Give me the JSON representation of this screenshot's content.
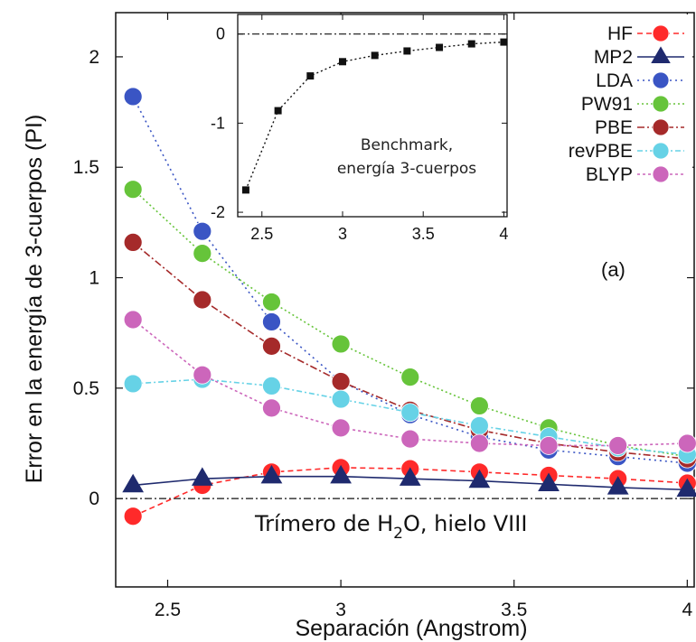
{
  "chart_data": [
    {
      "type": "line",
      "title": "",
      "xlabel": "Separación (Angstrom)",
      "ylabel": "Error en la energía de 3-cuerpos (PI)",
      "xlim": [
        2.35,
        4.02
      ],
      "ylim": [
        -0.4,
        2.2
      ],
      "x": [
        2.4,
        2.6,
        2.8,
        3.0,
        3.2,
        3.4,
        3.6,
        3.8,
        4.0
      ],
      "xticks": [
        "2.5",
        "3",
        "3.5",
        "4"
      ],
      "xtick_values": [
        2.5,
        3.0,
        3.5,
        4.0
      ],
      "yticks": [
        "0",
        "0.5",
        "1",
        "1.5",
        "2"
      ],
      "ytick_values": [
        0,
        0.5,
        1,
        1.5,
        2
      ],
      "annotation_panel": "(a)",
      "annotation_bottom_parts": [
        "Trímero de H",
        "2",
        "O, hielo VIII"
      ],
      "legend_position": "top-right",
      "grid": false,
      "series": [
        {
          "name": "HF",
          "color": "#ff2a2a",
          "marker": "circle",
          "dash": "6,4",
          "values": [
            -0.08,
            0.06,
            0.12,
            0.14,
            0.135,
            0.12,
            0.105,
            0.09,
            0.07
          ]
        },
        {
          "name": "MP2",
          "color": "#1f2a6e",
          "marker": "triangle",
          "dash": "",
          "values": [
            0.06,
            0.09,
            0.1,
            0.1,
            0.09,
            0.08,
            0.065,
            0.05,
            0.04
          ]
        },
        {
          "name": "LDA",
          "color": "#3a55c4",
          "marker": "circle",
          "dash": "2,4",
          "values": [
            1.82,
            1.21,
            0.8,
            0.53,
            0.38,
            0.28,
            0.22,
            0.19,
            0.16
          ]
        },
        {
          "name": "PW91",
          "color": "#66c43a",
          "marker": "circle",
          "dash": "2,3",
          "values": [
            1.4,
            1.11,
            0.89,
            0.7,
            0.55,
            0.42,
            0.32,
            0.24,
            0.19
          ]
        },
        {
          "name": "PBE",
          "color": "#a52a2a",
          "marker": "circle",
          "dash": "8,3,2,3",
          "values": [
            1.16,
            0.9,
            0.69,
            0.53,
            0.4,
            0.31,
            0.25,
            0.21,
            0.18
          ]
        },
        {
          "name": "revPBE",
          "color": "#66d2e6",
          "marker": "circle",
          "dash": "6,3,2,3",
          "values": [
            0.52,
            0.54,
            0.51,
            0.45,
            0.39,
            0.33,
            0.28,
            0.23,
            0.2
          ]
        },
        {
          "name": "BLYP",
          "color": "#cc66bb",
          "marker": "circle",
          "dash": "3,3",
          "values": [
            0.81,
            0.56,
            0.41,
            0.32,
            0.27,
            0.25,
            0.24,
            0.24,
            0.25
          ]
        }
      ]
    },
    {
      "type": "line",
      "title": "",
      "xlabel": "",
      "ylabel": "",
      "xlim": [
        2.35,
        4.02
      ],
      "ylim": [
        -2.05,
        0.22
      ],
      "xticks": [
        "2.5",
        "3",
        "3.5",
        "4"
      ],
      "xtick_values": [
        2.5,
        3.0,
        3.5,
        4.0
      ],
      "yticks": [
        "0",
        "-1",
        "-2"
      ],
      "ytick_values": [
        0,
        -1,
        -2
      ],
      "annotation": [
        "Benchmark,",
        "energía 3-cuerpos"
      ],
      "grid": false,
      "series": [
        {
          "name": "",
          "color": "#111111",
          "marker": "square",
          "dash": "2,3",
          "x": [
            2.4,
            2.6,
            2.8,
            3.0,
            3.2,
            3.4,
            3.6,
            3.8,
            4.0
          ],
          "values": [
            -1.75,
            -0.86,
            -0.47,
            -0.31,
            -0.24,
            -0.19,
            -0.15,
            -0.11,
            -0.09
          ]
        }
      ]
    }
  ]
}
